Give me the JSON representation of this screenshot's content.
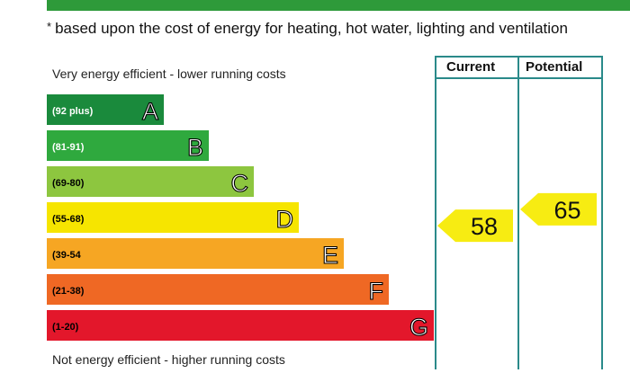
{
  "footnote": {
    "marker": "*",
    "text": "based upon the cost of energy for heating, hot water, lighting and ventilation"
  },
  "columns": {
    "current": "Current",
    "potential": "Potential"
  },
  "captions": {
    "top": "Very energy efficient - lower running costs",
    "bottom": "Not energy efficient - higher running costs"
  },
  "colors": {
    "header_bar": "#2e9a3a",
    "grid_line": "#2a8a8a",
    "rating_arrow": "#f7ec12"
  },
  "chart_data": {
    "type": "bar",
    "bands": [
      {
        "letter": "A",
        "range": "(92 plus)",
        "color": "#1a8a3c",
        "range_color": "#ffffff"
      },
      {
        "letter": "B",
        "range": "(81-91)",
        "color": "#2fa93e",
        "range_color": "#ffffff"
      },
      {
        "letter": "C",
        "range": "(69-80)",
        "color": "#8dc63f",
        "range_color": "#000000"
      },
      {
        "letter": "D",
        "range": "(55-68)",
        "color": "#f6e500",
        "range_color": "#000000"
      },
      {
        "letter": "E",
        "range": "(39-54",
        "color": "#f6a623",
        "range_color": "#000000"
      },
      {
        "letter": "F",
        "range": "(21-38)",
        "color": "#ef6824",
        "range_color": "#000000"
      },
      {
        "letter": "G",
        "range": "(1-20)",
        "color": "#e3172b",
        "range_color": "#000000"
      }
    ],
    "current": 58,
    "potential": 65
  }
}
